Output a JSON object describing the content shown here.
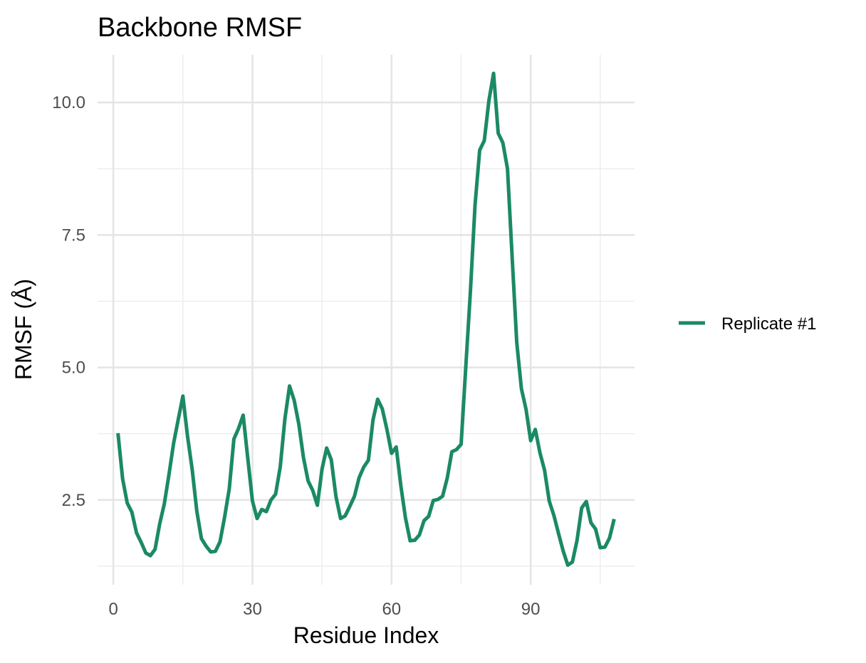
{
  "chart_data": {
    "type": "line",
    "title": "Backbone RMSF",
    "xlabel": "Residue Index",
    "ylabel": "RMSF (Å)",
    "xlim": [
      -3.4,
      112.4
    ],
    "ylim": [
      0.9,
      10.9
    ],
    "x_ticks": [
      0,
      30,
      60,
      90
    ],
    "x_tick_labels": [
      "0",
      "30",
      "60",
      "90"
    ],
    "y_ticks": [
      2.5,
      5.0,
      7.5,
      10.0
    ],
    "y_tick_labels": [
      "2.5",
      "5.0",
      "7.5",
      "10.0"
    ],
    "grid": true,
    "legend_position": "right",
    "series": [
      {
        "name": "Replicate #1",
        "color": "#1b8a64",
        "x": [
          1,
          2,
          3,
          4,
          5,
          6,
          7,
          8,
          9,
          10,
          11,
          12,
          13,
          14,
          15,
          16,
          17,
          18,
          19,
          20,
          21,
          22,
          23,
          24,
          25,
          26,
          27,
          28,
          29,
          30,
          31,
          32,
          33,
          34,
          35,
          36,
          37,
          38,
          39,
          40,
          41,
          42,
          43,
          44,
          45,
          46,
          47,
          48,
          49,
          50,
          51,
          52,
          53,
          54,
          55,
          56,
          57,
          58,
          59,
          60,
          61,
          62,
          63,
          64,
          65,
          66,
          67,
          68,
          69,
          70,
          71,
          72,
          73,
          74,
          75,
          76,
          77,
          78,
          79,
          80,
          81,
          82,
          83,
          84,
          85,
          86,
          87,
          88,
          89,
          90,
          91,
          92,
          93,
          94,
          95,
          96,
          97,
          98,
          99,
          100,
          101,
          102,
          103,
          104,
          105,
          106,
          107,
          108
        ],
        "y": [
          3.76,
          2.9,
          2.44,
          2.27,
          1.88,
          1.7,
          1.5,
          1.45,
          1.57,
          2.05,
          2.43,
          2.98,
          3.57,
          4.02,
          4.46,
          3.7,
          3.08,
          2.29,
          1.77,
          1.63,
          1.52,
          1.53,
          1.71,
          2.18,
          2.71,
          3.65,
          3.85,
          4.1,
          3.28,
          2.48,
          2.15,
          2.32,
          2.28,
          2.5,
          2.61,
          3.13,
          4.03,
          4.65,
          4.38,
          3.93,
          3.3,
          2.86,
          2.68,
          2.4,
          3.08,
          3.48,
          3.26,
          2.57,
          2.15,
          2.2,
          2.38,
          2.57,
          2.92,
          3.12,
          3.25,
          4.01,
          4.4,
          4.22,
          3.83,
          3.38,
          3.5,
          2.77,
          2.16,
          1.73,
          1.74,
          1.84,
          2.11,
          2.19,
          2.49,
          2.51,
          2.57,
          2.91,
          3.41,
          3.45,
          3.55,
          5.0,
          6.43,
          8.06,
          9.1,
          9.28,
          10.04,
          10.55,
          9.42,
          9.24,
          8.75,
          7.09,
          5.47,
          4.6,
          4.21,
          3.62,
          3.83,
          3.39,
          3.06,
          2.48,
          2.21,
          1.87,
          1.54,
          1.27,
          1.33,
          1.74,
          2.35,
          2.47,
          2.07,
          1.95,
          1.6,
          1.61,
          1.78,
          2.14
        ]
      }
    ]
  }
}
